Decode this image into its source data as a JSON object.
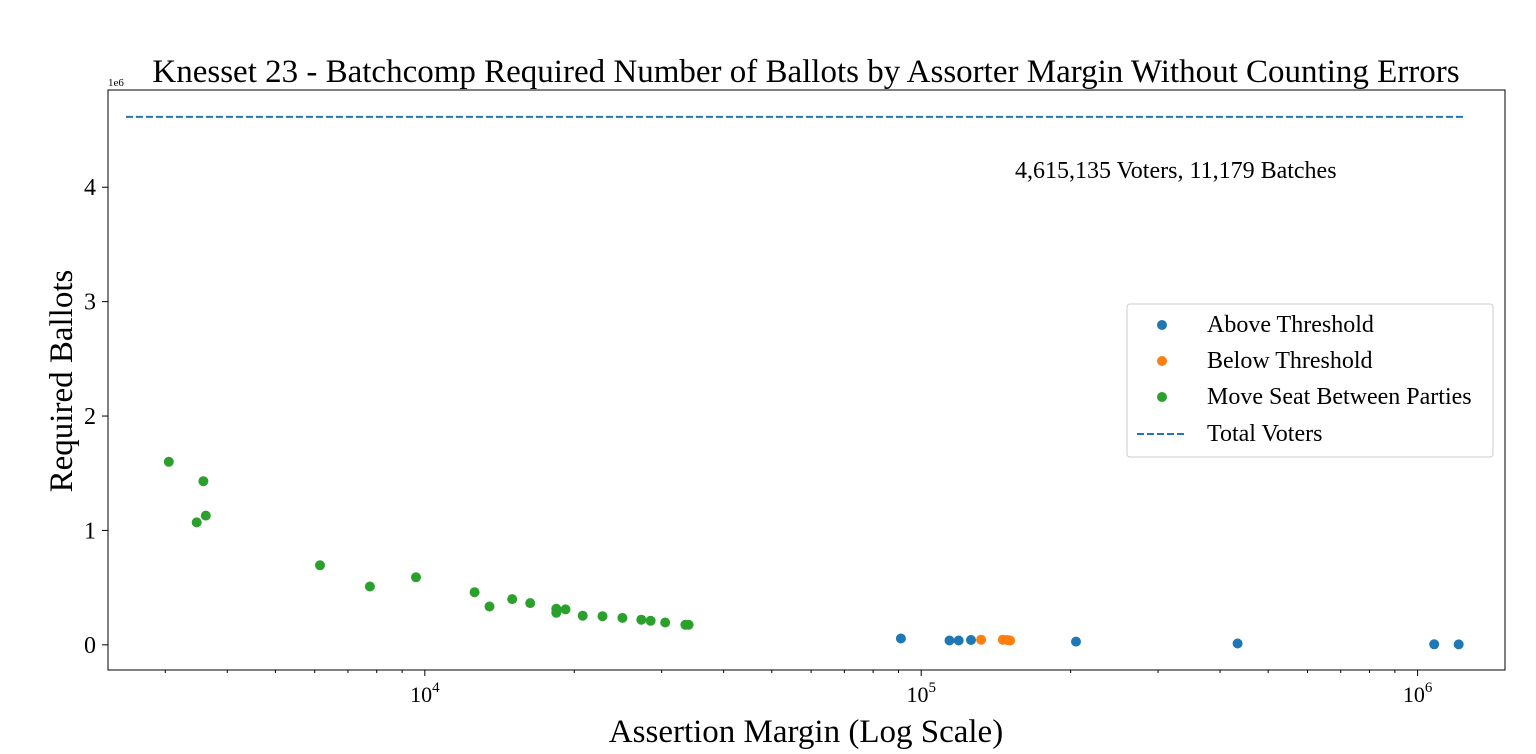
{
  "chart_data": {
    "type": "scatter",
    "title": "Knesset 23 - Batchcomp Required Number of Ballots by Assorter Margin Without Counting Errors",
    "xlabel": "Assertion Margin (Log Scale)",
    "ylabel": "Required Ballots",
    "x_scale": "log",
    "xlim": [
      2300,
      1500000
    ],
    "ylim": [
      -220000,
      4850000
    ],
    "y_offset_label": "1e6",
    "x_ticks": [
      {
        "value": 10000,
        "base": "10",
        "exp": "4"
      },
      {
        "value": 100000,
        "base": "10",
        "exp": "5"
      },
      {
        "value": 1000000,
        "base": "10",
        "exp": "6"
      }
    ],
    "y_ticks": [
      {
        "value": 0,
        "label": "0"
      },
      {
        "value": 1000000,
        "label": "1"
      },
      {
        "value": 2000000,
        "label": "2"
      },
      {
        "value": 3000000,
        "label": "3"
      },
      {
        "value": 4000000,
        "label": "4"
      }
    ],
    "series": [
      {
        "name": "Above Threshold",
        "color": "#1f77b4",
        "points": [
          [
            91000,
            55000
          ],
          [
            114000,
            38000
          ],
          [
            119000,
            38000
          ],
          [
            126000,
            42000
          ],
          [
            205000,
            28000
          ],
          [
            434000,
            12000
          ],
          [
            1080000,
            5000
          ],
          [
            1210000,
            4000
          ]
        ]
      },
      {
        "name": "Below Threshold",
        "color": "#ff7f0e",
        "points": [
          [
            132000,
            45000
          ],
          [
            146000,
            45000
          ],
          [
            149000,
            42000
          ],
          [
            151000,
            38000
          ]
        ]
      },
      {
        "name": "Move Seat Between Parties",
        "color": "#2ca02c",
        "points": [
          [
            3050,
            1600000
          ],
          [
            3470,
            1070000
          ],
          [
            3580,
            1430000
          ],
          [
            3620,
            1130000
          ],
          [
            6150,
            695000
          ],
          [
            7750,
            510000
          ],
          [
            9600,
            590000
          ],
          [
            12600,
            460000
          ],
          [
            13500,
            335000
          ],
          [
            15000,
            400000
          ],
          [
            16300,
            365000
          ],
          [
            18400,
            315000
          ],
          [
            18400,
            280000
          ],
          [
            19200,
            310000
          ],
          [
            20800,
            255000
          ],
          [
            22800,
            250000
          ],
          [
            25000,
            235000
          ],
          [
            27300,
            220000
          ],
          [
            28500,
            210000
          ],
          [
            30500,
            195000
          ],
          [
            33500,
            175000
          ],
          [
            34000,
            175000
          ]
        ]
      }
    ],
    "reference_line": {
      "name": "Total Voters",
      "value": 4615135,
      "color": "#1f77b4",
      "style": "dashed"
    },
    "annotation": "4,615,135 Voters, 11,179 Batches",
    "legend_position": "center-right",
    "grid": false
  }
}
